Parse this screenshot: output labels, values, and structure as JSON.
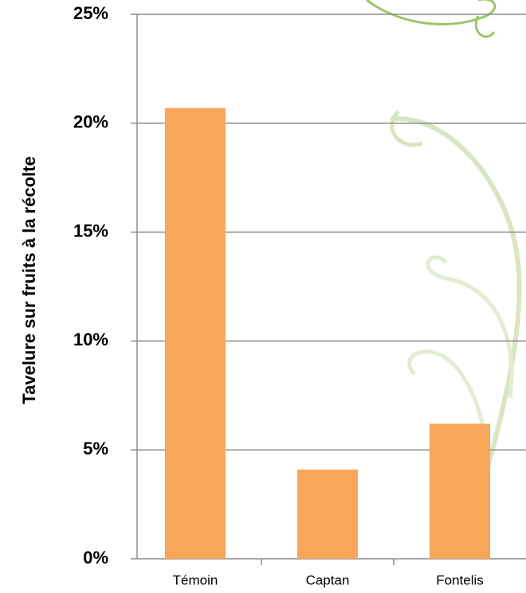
{
  "chart_data": {
    "type": "bar",
    "y_label": "Tavelure sur fruits à la récolte",
    "categories": [
      "Témoin",
      "Captan",
      "Fontelis"
    ],
    "values": [
      20.7,
      4.1,
      6.2
    ],
    "color": "#f8a65a",
    "ylim": [
      0,
      25
    ],
    "yticks": [
      {
        "value": 0,
        "label": "0%"
      },
      {
        "value": 5,
        "label": "5%"
      },
      {
        "value": 10,
        "label": "10%"
      },
      {
        "value": 15,
        "label": "15%"
      },
      {
        "value": 20,
        "label": "20%"
      },
      {
        "value": 25,
        "label": "25%"
      }
    ],
    "grid": true
  }
}
